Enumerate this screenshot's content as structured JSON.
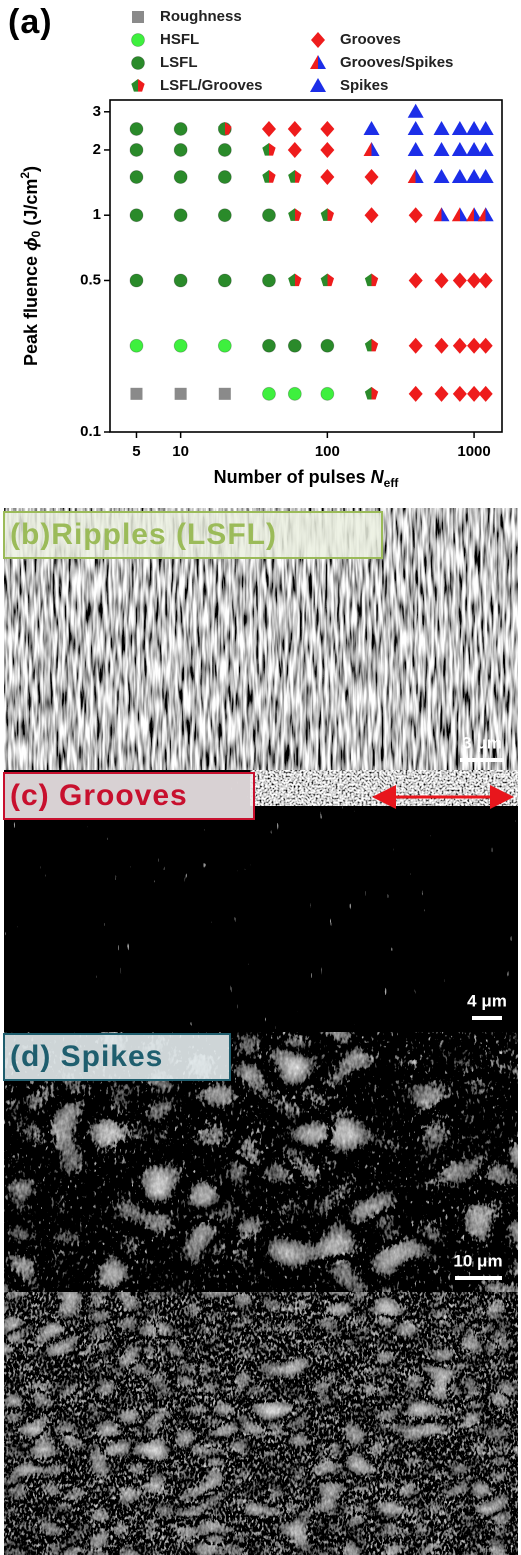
{
  "panel_label": "(a)",
  "chart_data": {
    "type": "scatter",
    "xlabel": [
      "Number of pulses ",
      "N",
      "eff"
    ],
    "ylabel": [
      "Peak fluence ",
      "ϕ",
      "0",
      " (J/cm",
      "2",
      ")"
    ],
    "xscale": "log",
    "yscale": "log",
    "xlim": [
      3.3,
      1550
    ],
    "ylim": [
      0.1,
      3.4
    ],
    "xticks": [
      5,
      10,
      100,
      1000
    ],
    "yticks": [
      0.1,
      0.5,
      1,
      2,
      3
    ],
    "series": [
      {
        "name": "Roughness",
        "color": "#8a8a8a",
        "marker": "square",
        "x": [
          5,
          10,
          20
        ],
        "y": [
          0.15,
          0.15,
          0.15
        ]
      },
      {
        "name": "HSFL",
        "color": "#3ef03e",
        "marker": "circle",
        "x": [
          5,
          10,
          20,
          40,
          60,
          100
        ],
        "y": [
          0.25,
          0.25,
          0.25,
          0.15,
          0.15,
          0.15
        ]
      },
      {
        "name": "LSFL",
        "color": "#2a8a2a",
        "marker": "circle",
        "x": [
          5,
          10,
          20,
          5,
          10,
          20,
          5,
          10,
          20,
          5,
          10,
          20,
          40,
          5,
          10,
          20,
          40,
          40,
          60,
          100
        ],
        "y": [
          2.5,
          2.5,
          2.5,
          2,
          2,
          2,
          1.5,
          1.5,
          1.5,
          1,
          1,
          1,
          1,
          0.5,
          0.5,
          0.5,
          0.5,
          0.25,
          0.25,
          0.25
        ]
      },
      {
        "name": "LSFL/Grooves",
        "color": "#2a8a2a",
        "color2": "#ee1c1c",
        "marker": "pentagon",
        "x": [
          20,
          40,
          40,
          60,
          60,
          100,
          60,
          100,
          200,
          200,
          200
        ],
        "y": [
          2.5,
          2,
          1.5,
          1.5,
          1,
          1,
          0.5,
          0.5,
          0.5,
          0.25,
          0.15
        ]
      },
      {
        "name": "Grooves",
        "color": "#ee1c1c",
        "marker": "diamond",
        "x": [
          40,
          60,
          100,
          60,
          100,
          100,
          200,
          200,
          400,
          400,
          600,
          800,
          1000,
          1200,
          400,
          600,
          800,
          1000,
          1200,
          400,
          600,
          800,
          1000,
          1200
        ],
        "y": [
          2.5,
          2.5,
          2.5,
          2,
          2,
          1.5,
          1.5,
          1,
          1,
          0.5,
          0.5,
          0.5,
          0.5,
          0.5,
          0.25,
          0.25,
          0.25,
          0.25,
          0.25,
          0.15,
          0.15,
          0.15,
          0.15,
          0.15
        ]
      },
      {
        "name": "Grooves/Spikes",
        "color": "#ee1c1c",
        "color2": "#1c2ee8",
        "marker": "triangle",
        "x": [
          200,
          400,
          600,
          800,
          1000,
          1200
        ],
        "y": [
          2,
          1.5,
          1,
          1,
          1,
          1
        ]
      },
      {
        "name": "Spikes",
        "color": "#1c2ee8",
        "marker": "triangle",
        "x": [
          400,
          200,
          400,
          600,
          800,
          1000,
          1200,
          400,
          600,
          800,
          1000,
          1200,
          600,
          800,
          1000,
          1200
        ],
        "y": [
          3,
          2.5,
          2.5,
          2.5,
          2.5,
          2.5,
          2.5,
          2,
          2,
          2,
          2,
          2,
          1.5,
          1.5,
          1.5,
          1.5
        ]
      }
    ]
  },
  "images": [
    {
      "label": "(b)Ripples (LSFL)",
      "scale_bar": "3 μm"
    },
    {
      "label": "(c) Grooves",
      "scale_bar": "4 μm"
    },
    {
      "label": "(d) Spikes",
      "scale_bar": "10 μm"
    }
  ]
}
